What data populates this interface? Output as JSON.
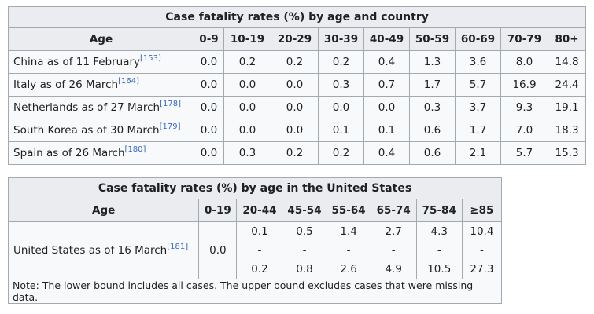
{
  "table1": {
    "caption": "Case fatality rates (%) by age and country",
    "headers": [
      "Age",
      "0-9",
      "10-19",
      "20-29",
      "30-39",
      "40-49",
      "50-59",
      "60-69",
      "70-79",
      "80+"
    ],
    "rows": [
      {
        "label": "China as of 11 February",
        "ref": "[153]",
        "values": [
          "0.0",
          "0.2",
          "0.2",
          "0.2",
          "0.4",
          "1.3",
          "3.6",
          "8.0",
          "14.8"
        ]
      },
      {
        "label": "Italy as of 26 March",
        "ref": "[164]",
        "values": [
          "0.0",
          "0.0",
          "0.0",
          "0.3",
          "0.7",
          "1.7",
          "5.7",
          "16.9",
          "24.4"
        ]
      },
      {
        "label": "Netherlands as of 27 March",
        "ref": "[178]",
        "values": [
          "0.0",
          "0.0",
          "0.0",
          "0.0",
          "0.0",
          "0.3",
          "3.7",
          "9.3",
          "19.1"
        ]
      },
      {
        "label": "South Korea as of 30 March",
        "ref": "[179]",
        "values": [
          "0.0",
          "0.0",
          "0.0",
          "0.1",
          "0.1",
          "0.6",
          "1.7",
          "7.0",
          "18.3"
        ]
      },
      {
        "label": "Spain as of 26 March",
        "ref": "[180]",
        "values": [
          "0.0",
          "0.3",
          "0.2",
          "0.2",
          "0.4",
          "0.6",
          "2.1",
          "5.7",
          "15.3"
        ]
      }
    ]
  },
  "table2": {
    "caption": "Case fatality rates (%) by age in the United States",
    "headers": [
      "Age",
      "0-19",
      "20-44",
      "45-54",
      "55-64",
      "65-74",
      "75-84",
      "≥85"
    ],
    "row": {
      "label": "United States as of 16 March",
      "ref": "[181]",
      "single": "0.0",
      "ranges": [
        {
          "low": "0.1",
          "sep": "-",
          "high": "0.2"
        },
        {
          "low": "0.5",
          "sep": "-",
          "high": "0.8"
        },
        {
          "low": "1.4",
          "sep": "-",
          "high": "2.6"
        },
        {
          "low": "2.7",
          "sep": "-",
          "high": "4.9"
        },
        {
          "low": "4.3",
          "sep": "-",
          "high": "10.5"
        },
        {
          "low": "10.4",
          "sep": "-",
          "high": "27.3"
        }
      ]
    },
    "note": "Note: The lower bound includes all cases. The upper bound excludes cases that were missing data."
  }
}
